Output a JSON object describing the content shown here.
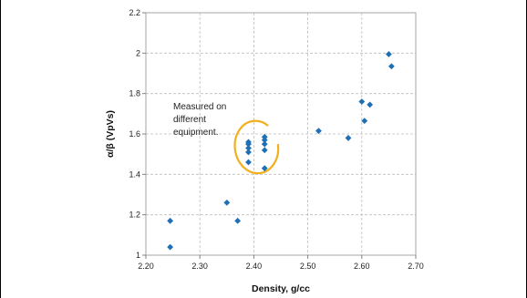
{
  "chart_data": {
    "type": "scatter",
    "title": "",
    "xlabel": "Density, g/cc",
    "ylabel": "α/β (VpVs)",
    "xlim": [
      2.2,
      2.7
    ],
    "ylim": [
      1,
      2.2
    ],
    "x_ticks": [
      "2.20",
      "2.30",
      "2.40",
      "2.50",
      "2.60",
      "2.70"
    ],
    "y_ticks": [
      "1",
      "1.2",
      "1.4",
      "1.6",
      "1.8",
      "2",
      "2.2"
    ],
    "grid": true,
    "legend": "none",
    "marker_color": "#1f6fb5",
    "highlight_color": "#f2b01e",
    "series": [
      {
        "points": [
          [
            2.245,
            1.04
          ],
          [
            2.245,
            1.17
          ],
          [
            2.35,
            1.26
          ],
          [
            2.37,
            1.17
          ],
          [
            2.39,
            1.46
          ],
          [
            2.39,
            1.51
          ],
          [
            2.39,
            1.53
          ],
          [
            2.39,
            1.55
          ],
          [
            2.39,
            1.56
          ],
          [
            2.42,
            1.43
          ],
          [
            2.42,
            1.52
          ],
          [
            2.42,
            1.55
          ],
          [
            2.42,
            1.57
          ],
          [
            2.42,
            1.585
          ],
          [
            2.52,
            1.615
          ],
          [
            2.575,
            1.58
          ],
          [
            2.6,
            1.76
          ],
          [
            2.605,
            1.665
          ],
          [
            2.615,
            1.745
          ],
          [
            2.65,
            1.995
          ],
          [
            2.655,
            1.935
          ]
        ]
      }
    ],
    "annotation": {
      "text": [
        "Measured on",
        "different",
        "equipment."
      ],
      "highlight_ellipse": {
        "center": [
          2.405,
          1.535
        ],
        "radius": [
          0.04,
          0.13
        ]
      }
    }
  }
}
